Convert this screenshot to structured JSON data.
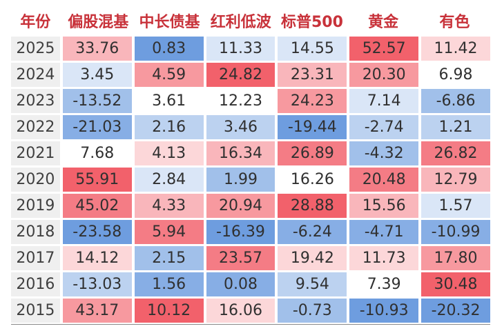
{
  "chart_data": {
    "type": "heatmap",
    "row_header_label": "年份",
    "columns": [
      "偏股混基",
      "中长债基",
      "红利低波",
      "标普500",
      "黄金",
      "有色"
    ],
    "rows": [
      {
        "year": "2025",
        "values": [
          "33.76",
          "0.83",
          "11.33",
          "14.55",
          "52.57",
          "11.42"
        ]
      },
      {
        "year": "2024",
        "values": [
          "3.45",
          "4.59",
          "24.82",
          "23.31",
          "20.30",
          "6.98"
        ]
      },
      {
        "year": "2023",
        "values": [
          "-13.52",
          "3.61",
          "12.23",
          "24.23",
          "7.14",
          "-6.86"
        ]
      },
      {
        "year": "2022",
        "values": [
          "-21.03",
          "2.16",
          "3.46",
          "-19.44",
          "-2.74",
          "1.21"
        ]
      },
      {
        "year": "2021",
        "values": [
          "7.68",
          "4.13",
          "16.34",
          "26.89",
          "-4.32",
          "26.82"
        ]
      },
      {
        "year": "2020",
        "values": [
          "55.91",
          "2.84",
          "1.99",
          "16.26",
          "20.48",
          "12.79"
        ]
      },
      {
        "year": "2019",
        "values": [
          "45.02",
          "4.33",
          "20.94",
          "28.88",
          "15.56",
          "1.57"
        ]
      },
      {
        "year": "2018",
        "values": [
          "-23.58",
          "5.94",
          "-16.39",
          "-6.24",
          "-4.71",
          "-10.99"
        ]
      },
      {
        "year": "2017",
        "values": [
          "14.12",
          "2.15",
          "23.57",
          "19.42",
          "11.73",
          "17.80"
        ]
      },
      {
        "year": "2016",
        "values": [
          "-13.03",
          "1.56",
          "0.08",
          "9.54",
          "7.39",
          "30.48"
        ]
      },
      {
        "year": "2015",
        "values": [
          "43.17",
          "10.12",
          "16.06",
          "-0.73",
          "-10.93",
          "-20.32"
        ]
      }
    ],
    "colors": {
      "header_text": "#c8323a",
      "year_bg": "#efefef",
      "high": "#f2616b",
      "mid": "#ffffff",
      "low": "#6e9ddf"
    }
  }
}
